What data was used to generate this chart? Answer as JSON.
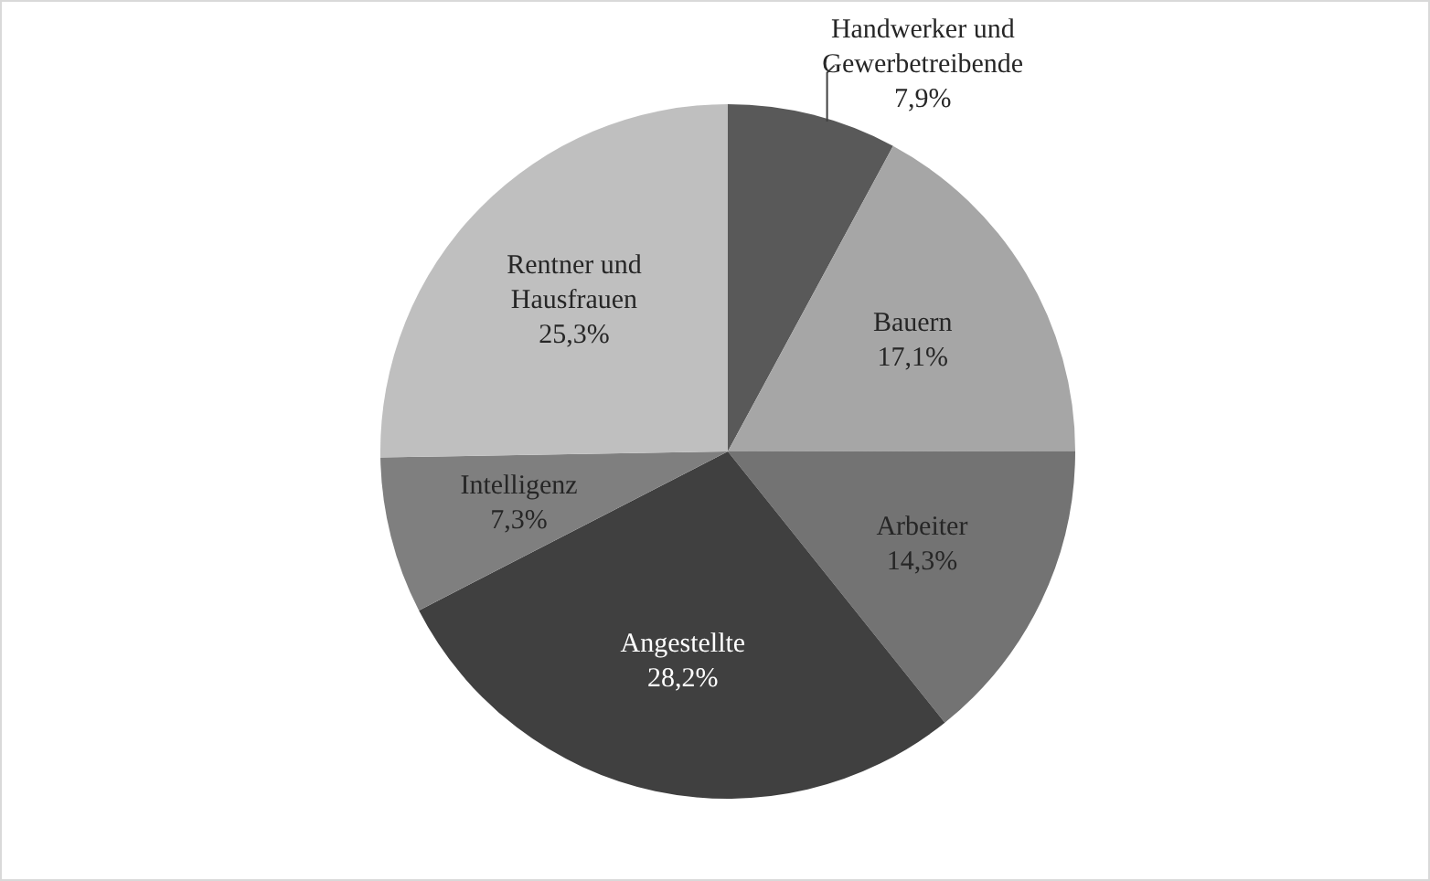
{
  "chart_data": {
    "type": "pie",
    "categories": [
      "Handwerker und Gewerbetreibende",
      "Bauern",
      "Arbeiter",
      "Angestellte",
      "Intelligenz",
      "Rentner und Hausfrauen"
    ],
    "values": [
      7.9,
      17.1,
      14.3,
      28.2,
      7.3,
      25.3
    ],
    "colors": [
      "#595959",
      "#a6a6a6",
      "#737373",
      "#404040",
      "#7f7f7f",
      "#bfbfbf"
    ],
    "value_labels": [
      "7,9%",
      "17,1%",
      "14,3%",
      "28,2%",
      "7,3%",
      "25,3%"
    ],
    "legend": false
  }
}
